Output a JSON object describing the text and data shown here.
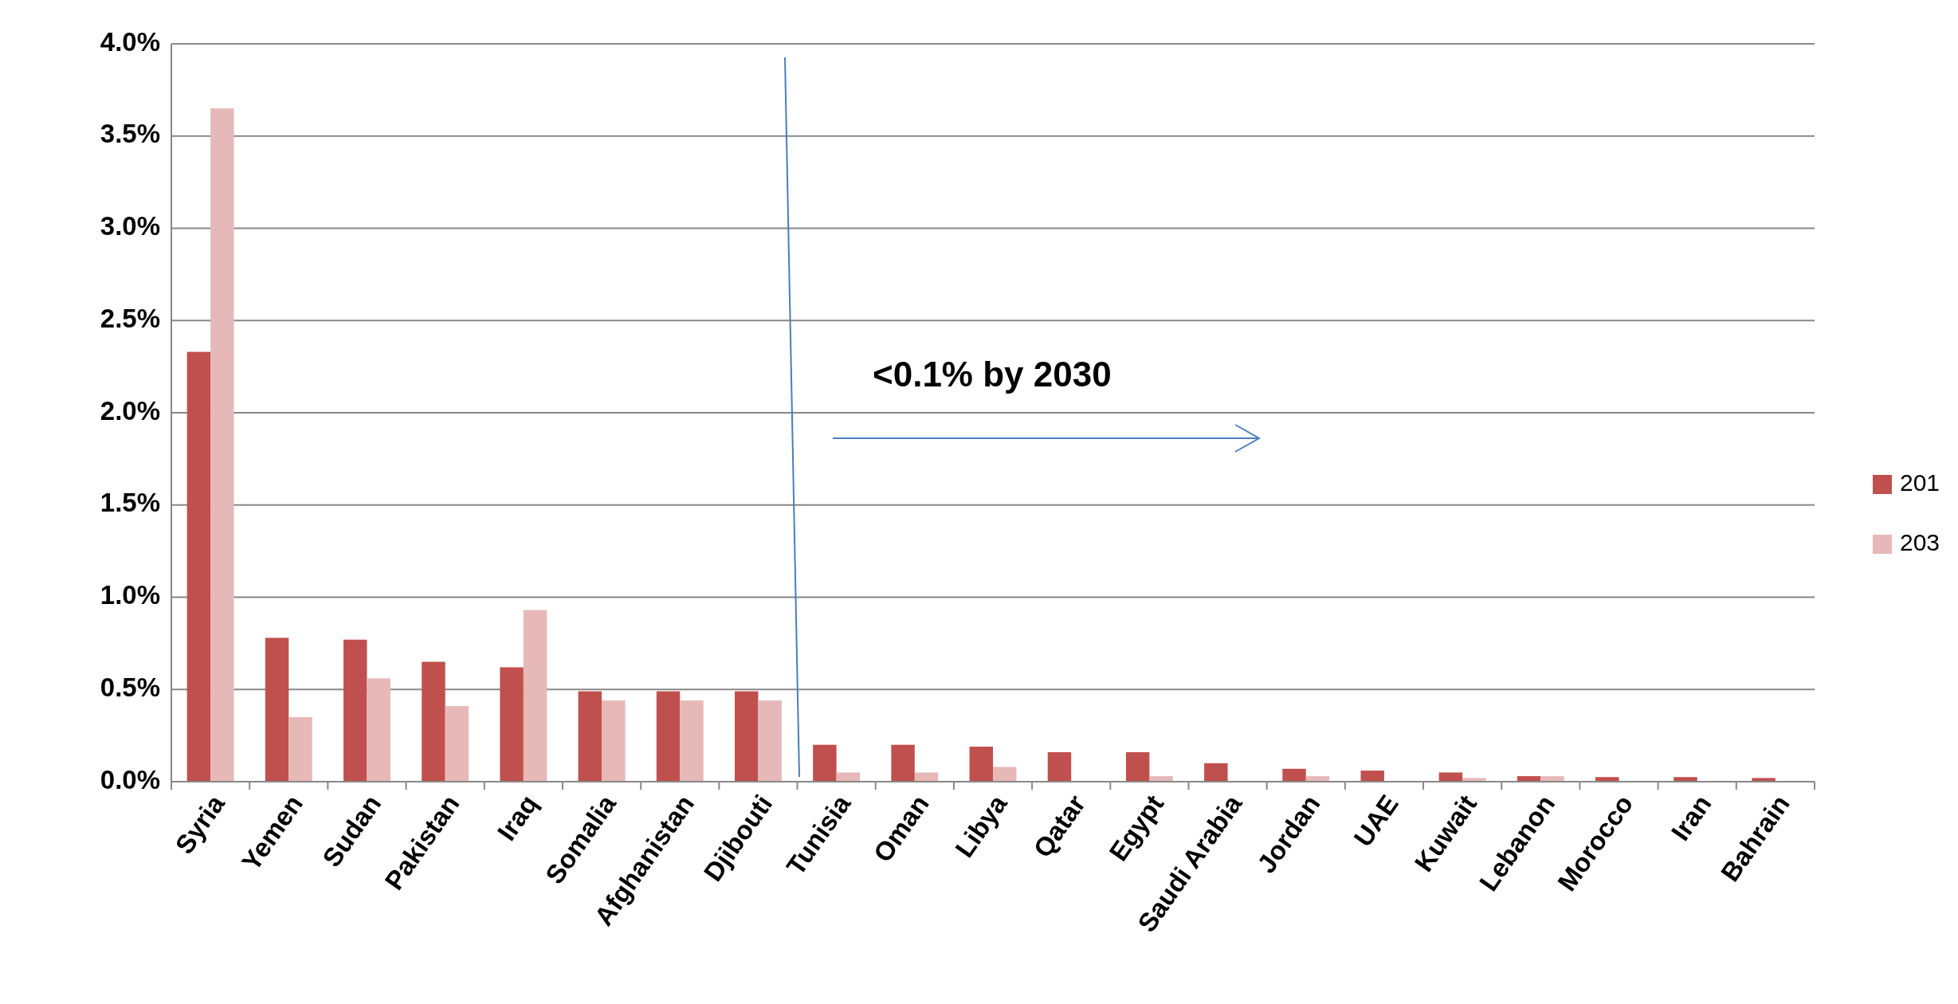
{
  "chart_data": {
    "type": "bar",
    "categories": [
      "Syria",
      "Yemen",
      "Sudan",
      "Pakistan",
      "Iraq",
      "Somalia",
      "Afghanistan",
      "Djibouti",
      "Tunisia",
      "Oman",
      "Libya",
      "Qatar",
      "Egypt",
      "Saudi Arabia",
      "Jordan",
      "UAE",
      "Kuwait",
      "Lebanon",
      "Morocco",
      "Iran",
      "Bahrain"
    ],
    "series": [
      {
        "name": "201",
        "color": "#c0504d",
        "values": [
          2.33,
          0.78,
          0.77,
          0.65,
          0.62,
          0.49,
          0.49,
          0.49,
          0.2,
          0.2,
          0.19,
          0.16,
          0.16,
          0.1,
          0.07,
          0.06,
          0.05,
          0.03,
          0.025,
          0.025,
          0.02
        ]
      },
      {
        "name": "203",
        "color": "#e6b9b8",
        "values": [
          3.65,
          0.35,
          0.56,
          0.41,
          0.93,
          0.44,
          0.44,
          0.44,
          0.05,
          0.05,
          0.08,
          null,
          0.03,
          null,
          0.03,
          0.0,
          0.02,
          0.03,
          null,
          null,
          null
        ]
      }
    ],
    "ylim": [
      0,
      4
    ],
    "yticks": [
      {
        "value": 0,
        "label": "0.0%"
      },
      {
        "value": 0.5,
        "label": "0.5%"
      },
      {
        "value": 1,
        "label": "1.0%"
      },
      {
        "value": 1.5,
        "label": "1.5%"
      },
      {
        "value": 2,
        "label": "2.0%"
      },
      {
        "value": 2.5,
        "label": "2.5%"
      },
      {
        "value": 3,
        "label": "3.0%"
      },
      {
        "value": 3.5,
        "label": "3.5%"
      },
      {
        "value": 4,
        "label": "4.0%"
      }
    ],
    "grid": "y",
    "legend": "right",
    "annotations": [
      "<0.1% by 2030"
    ]
  }
}
